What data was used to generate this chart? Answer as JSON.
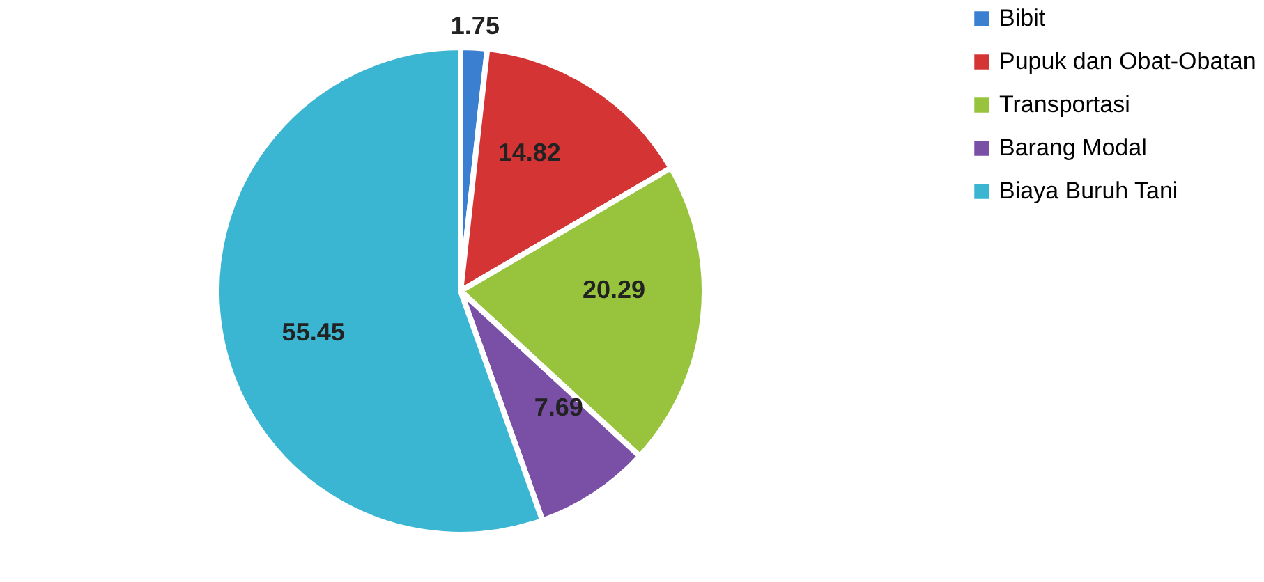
{
  "chart_data": {
    "type": "pie",
    "categories": [
      "Bibit",
      "Pupuk dan Obat-Obatan",
      "Transportasi",
      "Barang Modal",
      "Biaya Buruh Tani"
    ],
    "values": [
      1.75,
      14.82,
      20.29,
      7.69,
      55.45
    ],
    "colors": [
      "#3b7fd1",
      "#d43434",
      "#97c43c",
      "#7a4fa6",
      "#3ab5d2"
    ],
    "data_labels": true,
    "legend": "right"
  }
}
